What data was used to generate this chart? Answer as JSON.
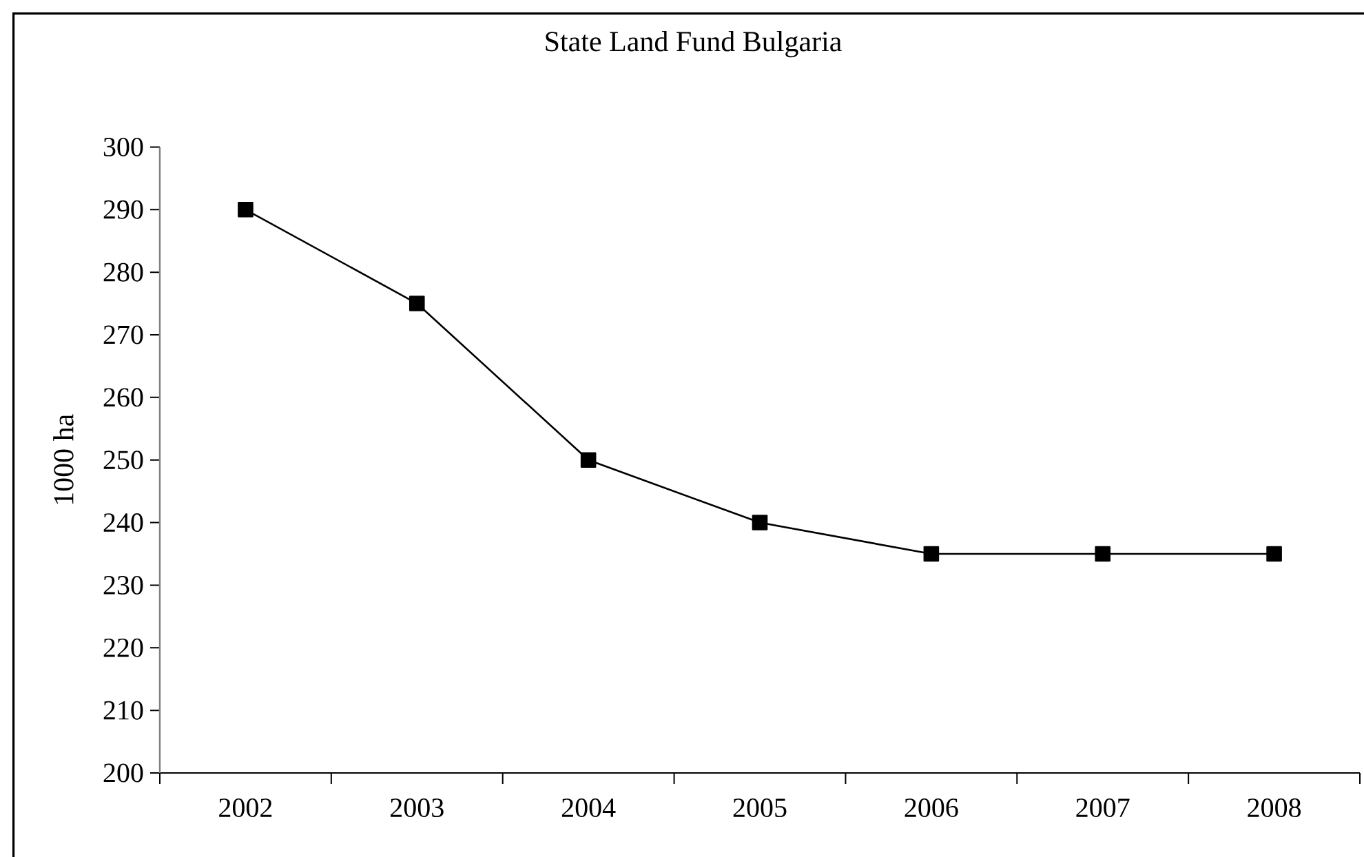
{
  "chart_data": {
    "type": "line",
    "title": "State Land Fund Bulgaria",
    "ylabel": "1000 ha",
    "categories": [
      "2002",
      "2003",
      "2004",
      "2005",
      "2006",
      "2007",
      "2008"
    ],
    "series": [
      {
        "color": "#000000",
        "values": [
          290,
          275,
          250,
          240,
          235,
          235,
          235
        ]
      }
    ],
    "ylim": [
      200,
      300
    ],
    "yticks": [
      200,
      210,
      220,
      230,
      240,
      250,
      260,
      270,
      280,
      290,
      300
    ],
    "marker": "square",
    "line_style": "solid"
  }
}
